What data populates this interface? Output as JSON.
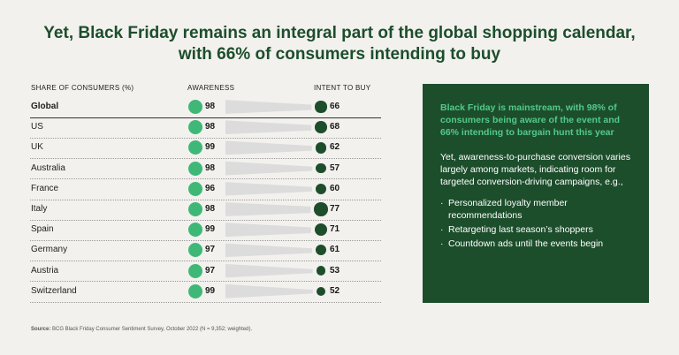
{
  "title_line1": "Yet, Black Friday remains an integral part of the global shopping calendar,",
  "title_line2": "with 66% of consumers intending to buy",
  "chart_data": {
    "type": "table",
    "columns": [
      "SHARE OF CONSUMERS (%)",
      "AWARENESS",
      "INTENT TO BUY"
    ],
    "rows": [
      {
        "label": "Global",
        "awareness": 98,
        "intent": 66,
        "bold": true
      },
      {
        "label": "US",
        "awareness": 98,
        "intent": 68
      },
      {
        "label": "UK",
        "awareness": 99,
        "intent": 62
      },
      {
        "label": "Australia",
        "awareness": 98,
        "intent": 57
      },
      {
        "label": "France",
        "awareness": 96,
        "intent": 60
      },
      {
        "label": "Italy",
        "awareness": 98,
        "intent": 77
      },
      {
        "label": "Spain",
        "awareness": 99,
        "intent": 71
      },
      {
        "label": "Germany",
        "awareness": 97,
        "intent": 61
      },
      {
        "label": "Austria",
        "awareness": 97,
        "intent": 53
      },
      {
        "label": "Switzerland",
        "awareness": 99,
        "intent": 52
      }
    ],
    "colors": {
      "awareness": "#3fb877",
      "intent": "#1e4d2b",
      "wedge": "#dcdcdc"
    }
  },
  "panel": {
    "highlight": "Black Friday is mainstream, with 98% of consumers being aware of the event and 66% intending to bargain hunt this year",
    "body": "Yet, awareness-to-purchase conversion varies largely among markets, indicating room for targeted conversion-driving campaigns, e.g.,",
    "bullets": [
      "Personalized loyalty member recommendations",
      "Retargeting last season’s shoppers",
      "Countdown ads until the events begin"
    ]
  },
  "source_label": "Source:",
  "source_text": "BCG Black Friday Consumer Sentiment Survey, October 2022 (N = 9,352; weighted)."
}
